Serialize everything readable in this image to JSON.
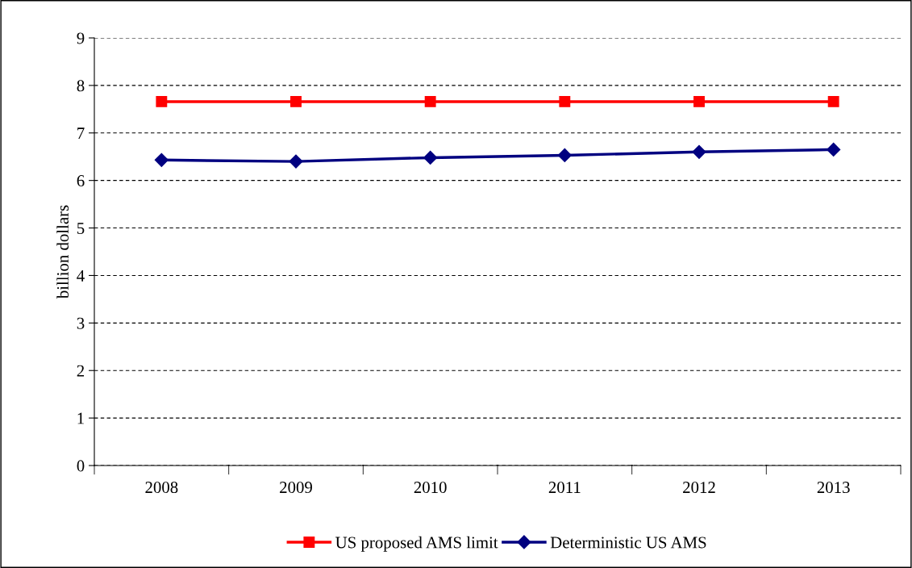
{
  "chart_data": {
    "type": "line",
    "ylabel": "billion dollars",
    "categories": [
      "2008",
      "2009",
      "2010",
      "2011",
      "2012",
      "2013"
    ],
    "series": [
      {
        "name": "US proposed AMS limit",
        "color": "#ff0000",
        "marker": "square",
        "values": [
          7.66,
          7.66,
          7.66,
          7.66,
          7.66,
          7.66
        ]
      },
      {
        "name": "Deterministic US AMS",
        "color": "#000080",
        "marker": "diamond",
        "values": [
          6.43,
          6.4,
          6.48,
          6.53,
          6.6,
          6.65
        ]
      }
    ],
    "ylim": [
      0,
      9
    ],
    "yticks": [
      0,
      1,
      2,
      3,
      4,
      5,
      6,
      7,
      8,
      9
    ],
    "grid": "y",
    "legend": "bottom",
    "line_style": "solid"
  }
}
